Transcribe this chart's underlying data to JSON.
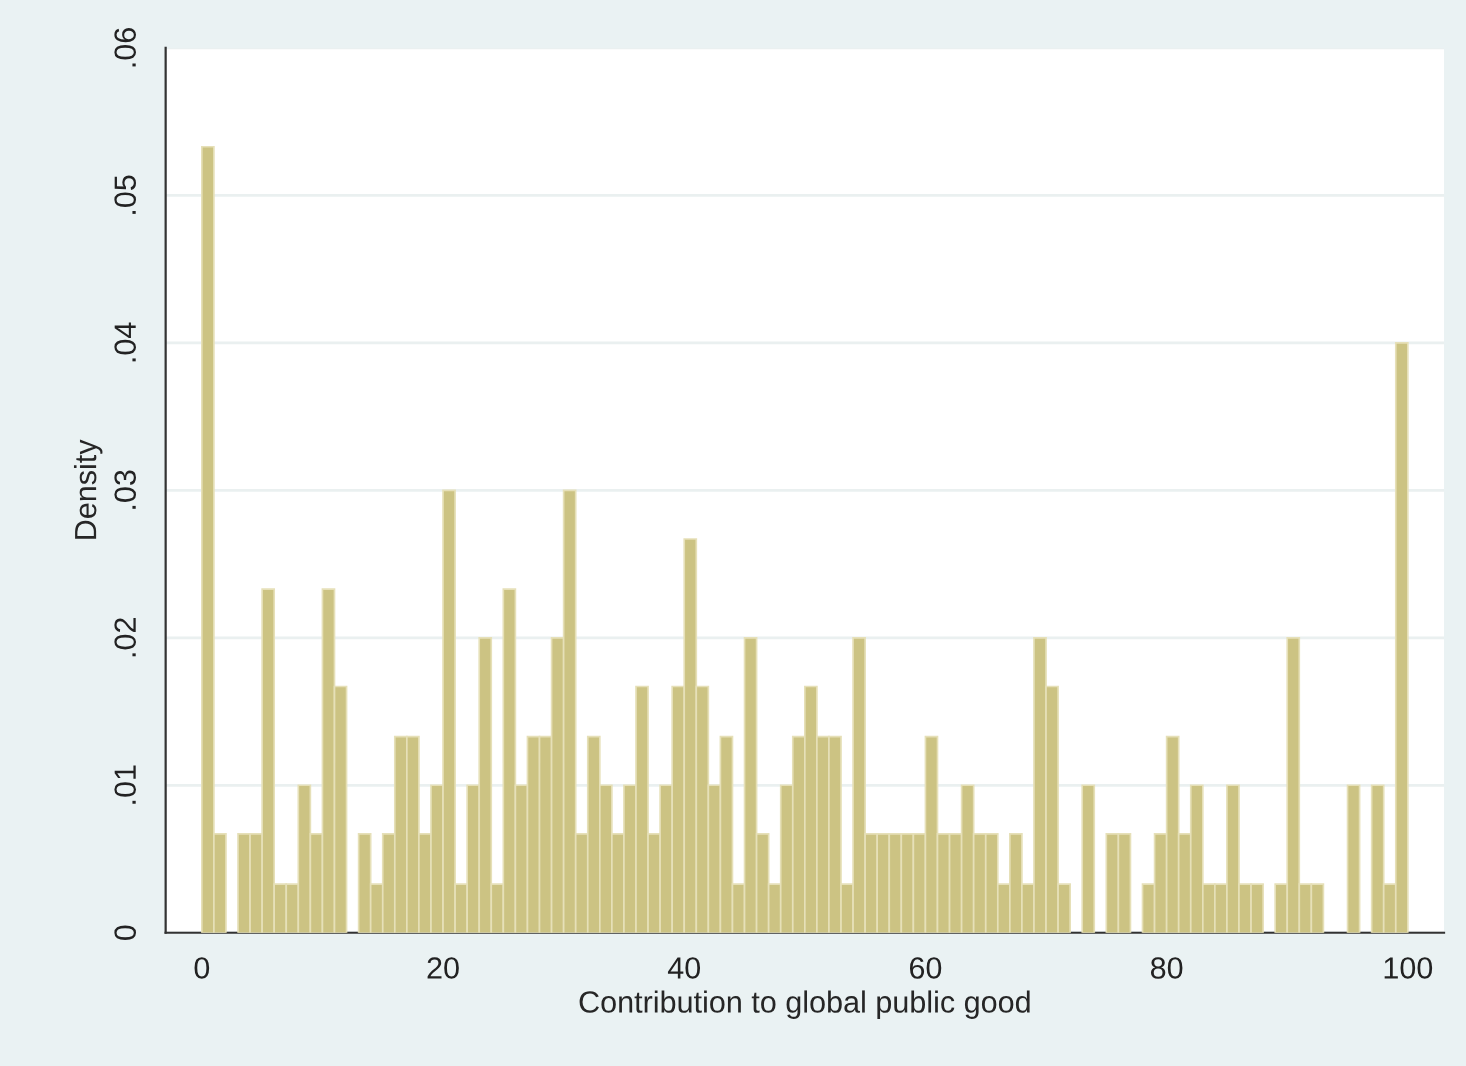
{
  "chart_data": {
    "type": "histogram",
    "xlabel": "Contribution to global public good",
    "ylabel": "Density",
    "color": "#ccc383",
    "bins": [
      0,
      1,
      2,
      3,
      4,
      5,
      6,
      7,
      8,
      9,
      10,
      11,
      12,
      13,
      14,
      15,
      16,
      17,
      18,
      19,
      20,
      21,
      22,
      23,
      24,
      25,
      26,
      27,
      28,
      29,
      30,
      31,
      32,
      33,
      34,
      35,
      36,
      37,
      38,
      39,
      40,
      41,
      42,
      43,
      44,
      45,
      46,
      47,
      48,
      49,
      50,
      51,
      52,
      53,
      54,
      55,
      56,
      57,
      58,
      59,
      60,
      61,
      62,
      63,
      64,
      65,
      66,
      67,
      68,
      69,
      70,
      71,
      72,
      73,
      74,
      75,
      76,
      77,
      78,
      79,
      80,
      81,
      82,
      83,
      84,
      85,
      86,
      87,
      88,
      89,
      90,
      91,
      92,
      93,
      94,
      95,
      96,
      97,
      98,
      99,
      100
    ],
    "values": [
      0.0533,
      0.0067,
      0,
      0.0067,
      0.0067,
      0.0233,
      0.0033,
      0.0033,
      0.01,
      0.0067,
      0.0233,
      0.0167,
      0,
      0.0067,
      0.0033,
      0.0067,
      0.0133,
      0.0133,
      0.0067,
      0.01,
      0.03,
      0.0033,
      0.01,
      0.02,
      0.0033,
      0.0233,
      0.01,
      0.0133,
      0.0133,
      0.02,
      0.03,
      0.0067,
      0.0133,
      0.01,
      0.0067,
      0.01,
      0.0167,
      0.0067,
      0.01,
      0.0167,
      0.0267,
      0.0167,
      0.01,
      0.0133,
      0.0033,
      0.02,
      0.0067,
      0.0033,
      0.01,
      0.0133,
      0.0167,
      0.0133,
      0.0133,
      0.0033,
      0.02,
      0.0067,
      0.0067,
      0.0067,
      0.0067,
      0.0067,
      0.0133,
      0.0067,
      0.0067,
      0.01,
      0.0067,
      0.0067,
      0.0033,
      0.0067,
      0.0033,
      0.02,
      0.0167,
      0.0033,
      0,
      0.01,
      0,
      0.0067,
      0.0067,
      0,
      0.0033,
      0.0067,
      0.0133,
      0.0067,
      0.01,
      0.0033,
      0.0033,
      0.01,
      0.0033,
      0.0033,
      0,
      0.0033,
      0.02,
      0.0033,
      0.0033,
      0,
      0,
      0.01,
      0,
      0.01,
      0.0033,
      0.04
    ],
    "xlim": [
      -3,
      103
    ],
    "xticks": [
      0,
      20,
      40,
      60,
      80,
      100
    ],
    "ylim": [
      0,
      0.06
    ],
    "yticks": [
      {
        "value": 0,
        "label": "0"
      },
      {
        "value": 0.01,
        "label": ".01"
      },
      {
        "value": 0.02,
        "label": ".02"
      },
      {
        "value": 0.03,
        "label": ".03"
      },
      {
        "value": 0.04,
        "label": ".04"
      },
      {
        "value": 0.05,
        "label": ".05"
      },
      {
        "value": 0.06,
        "label": ".06"
      }
    ],
    "grid": "y"
  }
}
